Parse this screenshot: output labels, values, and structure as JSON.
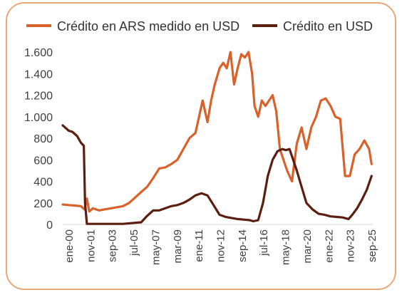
{
  "chart_data": {
    "type": "line",
    "title": "",
    "xlabel": "",
    "ylabel": "",
    "ylim": [
      0,
      1700
    ],
    "yticks": [
      0,
      200,
      400,
      600,
      800,
      "1.000",
      "1.200",
      "1.400",
      "1.600"
    ],
    "ytick_labels": [
      "0",
      "200",
      "400",
      "600",
      "800",
      "1.000",
      "1.200",
      "1.400",
      "1.600"
    ],
    "xlim": [
      2000.0,
      2025.7
    ],
    "xtick_labels": [
      "ene-00",
      "nov-01",
      "sep-03",
      "jul-05",
      "may-07",
      "mar-09",
      "ene-11",
      "nov-12",
      "sep-14",
      "jul-16",
      "may-18",
      "mar-20",
      "ene-22",
      "nov-23",
      "sep-25"
    ],
    "grid": false,
    "legend": "top",
    "series": [
      {
        "name": "Crédito en ARS medido en USD",
        "color": "#d9622b",
        "x": [
          2000.0,
          2000.5,
          2001.0,
          2001.5,
          2001.8,
          2002.0,
          2002.2,
          2002.5,
          2003.0,
          2003.5,
          2004.0,
          2004.5,
          2005.0,
          2005.5,
          2006.0,
          2006.5,
          2007.0,
          2007.5,
          2008.0,
          2008.5,
          2009.0,
          2009.5,
          2010.0,
          2010.5,
          2011.0,
          2011.3,
          2011.6,
          2012.0,
          2012.3,
          2012.6,
          2013.0,
          2013.3,
          2013.6,
          2013.9,
          2014.2,
          2014.5,
          2014.8,
          2015.1,
          2015.4,
          2015.7,
          2015.9,
          2016.2,
          2016.5,
          2016.8,
          2017.1,
          2017.4,
          2017.7,
          2018.0,
          2018.3,
          2018.6,
          2019.0,
          2019.4,
          2019.8,
          2020.2,
          2020.6,
          2021.0,
          2021.4,
          2021.8,
          2022.2,
          2022.6,
          2023.0,
          2023.4,
          2023.8,
          2024.2,
          2024.6,
          2025.0,
          2025.4,
          2025.6
        ],
        "values": [
          185,
          180,
          175,
          170,
          140,
          240,
          120,
          150,
          130,
          140,
          150,
          160,
          170,
          200,
          250,
          300,
          350,
          430,
          520,
          530,
          560,
          600,
          700,
          800,
          850,
          1000,
          1150,
          950,
          1150,
          1300,
          1450,
          1500,
          1450,
          1600,
          1300,
          1450,
          1580,
          1550,
          1600,
          1400,
          1100,
          1000,
          1150,
          1100,
          1150,
          1200,
          1050,
          700,
          600,
          500,
          400,
          750,
          900,
          700,
          900,
          1000,
          1150,
          1170,
          1100,
          1000,
          980,
          450,
          450,
          650,
          700,
          780,
          700,
          560
        ]
      },
      {
        "name": "Crédito en USD",
        "color": "#5b1e11",
        "x": [
          2000.0,
          2000.5,
          2000.8,
          2001.2,
          2001.5,
          2001.75,
          2001.85,
          2002.0,
          2003.0,
          2004.0,
          2005.0,
          2006.0,
          2006.5,
          2007.0,
          2007.5,
          2008.0,
          2008.5,
          2009.0,
          2009.5,
          2010.0,
          2010.5,
          2011.0,
          2011.5,
          2012.0,
          2012.5,
          2013.0,
          2013.5,
          2014.0,
          2014.5,
          2015.0,
          2015.5,
          2015.8,
          2016.2,
          2016.6,
          2017.0,
          2017.4,
          2017.8,
          2018.2,
          2018.5,
          2018.8,
          2019.1,
          2019.4,
          2019.8,
          2020.2,
          2020.7,
          2021.2,
          2021.7,
          2022.2,
          2022.7,
          2023.2,
          2023.7,
          2024.0,
          2024.4,
          2024.8,
          2025.2,
          2025.6
        ],
        "values": [
          920,
          870,
          860,
          820,
          760,
          730,
          200,
          5,
          5,
          5,
          5,
          15,
          20,
          80,
          130,
          130,
          150,
          170,
          180,
          200,
          230,
          270,
          290,
          270,
          180,
          90,
          70,
          60,
          50,
          45,
          40,
          30,
          40,
          200,
          450,
          600,
          680,
          700,
          690,
          700,
          600,
          500,
          350,
          200,
          140,
          100,
          90,
          75,
          70,
          65,
          50,
          90,
          150,
          230,
          320,
          450
        ]
      }
    ]
  }
}
